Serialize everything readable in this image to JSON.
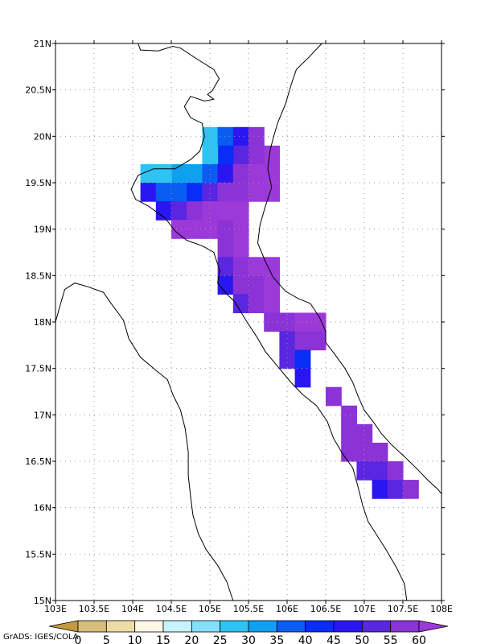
{
  "map": {
    "lon_range": [
      103,
      108
    ],
    "lat_range": [
      15,
      21
    ],
    "x_ticks": [
      {
        "value": 103,
        "label": "103E"
      },
      {
        "value": 103.5,
        "label": "103.5E"
      },
      {
        "value": 104,
        "label": "104E"
      },
      {
        "value": 104.5,
        "label": "104.5E"
      },
      {
        "value": 105,
        "label": "105E"
      },
      {
        "value": 105.5,
        "label": "105.5E"
      },
      {
        "value": 106,
        "label": "106E"
      },
      {
        "value": 106.5,
        "label": "106.5E"
      },
      {
        "value": 107,
        "label": "107E"
      },
      {
        "value": 107.5,
        "label": "107.5E"
      },
      {
        "value": 108,
        "label": "108E"
      }
    ],
    "y_ticks": [
      {
        "value": 15,
        "label": "15N"
      },
      {
        "value": 15.5,
        "label": "15.5N"
      },
      {
        "value": 16,
        "label": "16N"
      },
      {
        "value": 16.5,
        "label": "16.5N"
      },
      {
        "value": 17,
        "label": "17N"
      },
      {
        "value": 17.5,
        "label": "17.5N"
      },
      {
        "value": 18,
        "label": "18N"
      },
      {
        "value": 18.5,
        "label": "18.5N"
      },
      {
        "value": 19,
        "label": "19N"
      },
      {
        "value": 19.5,
        "label": "19.5N"
      },
      {
        "value": 20,
        "label": "20N"
      },
      {
        "value": 20.5,
        "label": "20.5N"
      },
      {
        "value": 21,
        "label": "21N"
      }
    ],
    "grid": true,
    "cells": [
      {
        "lon": 105.0,
        "lat": 20.0,
        "v": 27
      },
      {
        "lon": 105.2,
        "lat": 20.0,
        "v": 35
      },
      {
        "lon": 105.4,
        "lat": 20.0,
        "v": 48
      },
      {
        "lon": 105.6,
        "lat": 20.0,
        "v": 58
      },
      {
        "lon": 105.8,
        "lat": 19.8,
        "v": 60
      },
      {
        "lon": 105.6,
        "lat": 19.8,
        "v": 58
      },
      {
        "lon": 105.4,
        "lat": 19.8,
        "v": 50
      },
      {
        "lon": 105.2,
        "lat": 19.8,
        "v": 40
      },
      {
        "lon": 105.0,
        "lat": 19.8,
        "v": 28
      },
      {
        "lon": 104.8,
        "lat": 19.6,
        "v": 30
      },
      {
        "lon": 104.6,
        "lat": 19.6,
        "v": 30
      },
      {
        "lon": 104.4,
        "lat": 19.6,
        "v": 28
      },
      {
        "lon": 104.2,
        "lat": 19.6,
        "v": 25
      },
      {
        "lon": 105.0,
        "lat": 19.6,
        "v": 35
      },
      {
        "lon": 105.2,
        "lat": 19.6,
        "v": 45
      },
      {
        "lon": 105.4,
        "lat": 19.6,
        "v": 55
      },
      {
        "lon": 105.6,
        "lat": 19.6,
        "v": 60
      },
      {
        "lon": 105.8,
        "lat": 19.6,
        "v": 60
      },
      {
        "lon": 104.2,
        "lat": 19.4,
        "v": 45
      },
      {
        "lon": 104.4,
        "lat": 19.4,
        "v": 38
      },
      {
        "lon": 104.6,
        "lat": 19.4,
        "v": 35
      },
      {
        "lon": 104.8,
        "lat": 19.4,
        "v": 40
      },
      {
        "lon": 105.0,
        "lat": 19.4,
        "v": 50
      },
      {
        "lon": 105.2,
        "lat": 19.4,
        "v": 55
      },
      {
        "lon": 105.4,
        "lat": 19.4,
        "v": 58
      },
      {
        "lon": 105.6,
        "lat": 19.4,
        "v": 60
      },
      {
        "lon": 105.8,
        "lat": 19.4,
        "v": 60
      },
      {
        "lon": 104.4,
        "lat": 19.2,
        "v": 48
      },
      {
        "lon": 104.6,
        "lat": 19.2,
        "v": 52
      },
      {
        "lon": 104.8,
        "lat": 19.2,
        "v": 58
      },
      {
        "lon": 105.0,
        "lat": 19.2,
        "v": 60
      },
      {
        "lon": 105.2,
        "lat": 19.2,
        "v": 60
      },
      {
        "lon": 105.4,
        "lat": 19.2,
        "v": 60
      },
      {
        "lon": 104.6,
        "lat": 19.0,
        "v": 60
      },
      {
        "lon": 104.8,
        "lat": 19.0,
        "v": 60
      },
      {
        "lon": 105.0,
        "lat": 19.0,
        "v": 60
      },
      {
        "lon": 105.2,
        "lat": 19.0,
        "v": 58
      },
      {
        "lon": 105.4,
        "lat": 19.0,
        "v": 60
      },
      {
        "lon": 105.2,
        "lat": 18.8,
        "v": 55
      },
      {
        "lon": 105.4,
        "lat": 18.8,
        "v": 60
      },
      {
        "lon": 105.2,
        "lat": 18.6,
        "v": 50
      },
      {
        "lon": 105.4,
        "lat": 18.6,
        "v": 55
      },
      {
        "lon": 105.6,
        "lat": 18.6,
        "v": 60
      },
      {
        "lon": 105.8,
        "lat": 18.6,
        "v": 60
      },
      {
        "lon": 105.2,
        "lat": 18.4,
        "v": 48
      },
      {
        "lon": 105.4,
        "lat": 18.4,
        "v": 55
      },
      {
        "lon": 105.6,
        "lat": 18.4,
        "v": 58
      },
      {
        "lon": 105.8,
        "lat": 18.4,
        "v": 60
      },
      {
        "lon": 105.4,
        "lat": 18.2,
        "v": 50
      },
      {
        "lon": 105.6,
        "lat": 18.2,
        "v": 55
      },
      {
        "lon": 105.8,
        "lat": 18.2,
        "v": 60
      },
      {
        "lon": 105.8,
        "lat": 18.0,
        "v": 55
      },
      {
        "lon": 106.0,
        "lat": 18.0,
        "v": 58
      },
      {
        "lon": 106.2,
        "lat": 18.0,
        "v": 60
      },
      {
        "lon": 106.4,
        "lat": 18.0,
        "v": 60
      },
      {
        "lon": 106.0,
        "lat": 17.8,
        "v": 52
      },
      {
        "lon": 106.2,
        "lat": 17.8,
        "v": 55
      },
      {
        "lon": 106.4,
        "lat": 17.8,
        "v": 58
      },
      {
        "lon": 106.0,
        "lat": 17.6,
        "v": 50
      },
      {
        "lon": 106.2,
        "lat": 17.6,
        "v": 40
      },
      {
        "lon": 106.2,
        "lat": 17.4,
        "v": 48
      },
      {
        "lon": 106.6,
        "lat": 17.2,
        "v": 58
      },
      {
        "lon": 106.8,
        "lat": 17.0,
        "v": 58
      },
      {
        "lon": 106.8,
        "lat": 16.8,
        "v": 55
      },
      {
        "lon": 107.0,
        "lat": 16.8,
        "v": 58
      },
      {
        "lon": 106.8,
        "lat": 16.6,
        "v": 58
      },
      {
        "lon": 107.0,
        "lat": 16.6,
        "v": 55
      },
      {
        "lon": 107.2,
        "lat": 16.6,
        "v": 58
      },
      {
        "lon": 107.0,
        "lat": 16.4,
        "v": 50
      },
      {
        "lon": 107.2,
        "lat": 16.4,
        "v": 52
      },
      {
        "lon": 107.4,
        "lat": 16.4,
        "v": 58
      },
      {
        "lon": 107.2,
        "lat": 16.2,
        "v": 45
      },
      {
        "lon": 107.4,
        "lat": 16.2,
        "v": 50
      },
      {
        "lon": 107.6,
        "lat": 16.2,
        "v": 58
      }
    ],
    "coastline_lonlat": [
      [
        104.07,
        21.0
      ],
      [
        104.1,
        20.93
      ],
      [
        104.33,
        20.92
      ],
      [
        104.52,
        20.97
      ],
      [
        104.62,
        20.95
      ],
      [
        104.82,
        20.84
      ],
      [
        105.05,
        20.72
      ],
      [
        105.12,
        20.62
      ],
      [
        105.03,
        20.49
      ],
      [
        104.97,
        20.45
      ],
      [
        105.05,
        20.4
      ],
      [
        104.93,
        20.38
      ],
      [
        104.75,
        20.43
      ],
      [
        104.67,
        20.32
      ],
      [
        104.75,
        20.2
      ],
      [
        104.9,
        20.14
      ],
      [
        104.93,
        20.0
      ],
      [
        104.87,
        19.84
      ],
      [
        104.75,
        19.75
      ],
      [
        104.55,
        19.65
      ],
      [
        104.27,
        19.65
      ],
      [
        104.07,
        19.58
      ],
      [
        103.98,
        19.43
      ],
      [
        104.04,
        19.32
      ],
      [
        104.2,
        19.25
      ],
      [
        104.42,
        19.12
      ],
      [
        104.55,
        18.98
      ],
      [
        104.7,
        18.88
      ],
      [
        104.9,
        18.82
      ],
      [
        105.05,
        18.75
      ],
      [
        105.13,
        18.55
      ],
      [
        105.1,
        18.42
      ],
      [
        105.22,
        18.3
      ],
      [
        105.32,
        18.22
      ],
      [
        105.48,
        18.0
      ],
      [
        105.6,
        17.85
      ],
      [
        105.72,
        17.68
      ],
      [
        105.88,
        17.52
      ],
      [
        106.05,
        17.35
      ],
      [
        106.2,
        17.22
      ],
      [
        106.38,
        17.1
      ],
      [
        106.52,
        16.93
      ],
      [
        106.6,
        16.75
      ],
      [
        106.72,
        16.58
      ],
      [
        106.85,
        16.43
      ],
      [
        106.92,
        16.22
      ],
      [
        106.98,
        16.02
      ],
      [
        107.05,
        15.85
      ],
      [
        107.15,
        15.72
      ],
      [
        107.28,
        15.55
      ],
      [
        107.42,
        15.35
      ],
      [
        107.52,
        15.18
      ],
      [
        107.55,
        15.0
      ]
    ],
    "coast_lonlat": [
      [
        106.45,
        21.0
      ],
      [
        106.28,
        20.85
      ],
      [
        106.12,
        20.72
      ],
      [
        106.05,
        20.55
      ],
      [
        105.98,
        20.35
      ],
      [
        105.88,
        20.15
      ],
      [
        105.82,
        19.98
      ],
      [
        105.78,
        19.85
      ],
      [
        105.75,
        19.65
      ],
      [
        105.8,
        19.45
      ],
      [
        105.72,
        19.25
      ],
      [
        105.65,
        19.05
      ],
      [
        105.62,
        18.85
      ],
      [
        105.72,
        18.65
      ],
      [
        105.82,
        18.48
      ],
      [
        105.98,
        18.33
      ],
      [
        106.15,
        18.25
      ],
      [
        106.3,
        18.2
      ],
      [
        106.42,
        18.05
      ],
      [
        106.5,
        17.9
      ],
      [
        106.5,
        17.78
      ],
      [
        106.62,
        17.65
      ],
      [
        106.75,
        17.5
      ],
      [
        106.85,
        17.35
      ],
      [
        106.92,
        17.2
      ],
      [
        107.0,
        17.05
      ],
      [
        107.12,
        16.92
      ],
      [
        107.22,
        16.8
      ],
      [
        107.35,
        16.68
      ],
      [
        107.52,
        16.55
      ],
      [
        107.68,
        16.42
      ],
      [
        107.82,
        16.3
      ],
      [
        107.95,
        16.2
      ],
      [
        108.0,
        16.15
      ]
    ],
    "border2_lonlat": [
      [
        103.0,
        18.0
      ],
      [
        103.05,
        18.15
      ],
      [
        103.12,
        18.35
      ],
      [
        103.25,
        18.42
      ],
      [
        103.42,
        18.38
      ],
      [
        103.62,
        18.32
      ],
      [
        103.72,
        18.2
      ],
      [
        103.88,
        18.02
      ],
      [
        103.95,
        17.82
      ],
      [
        104.1,
        17.62
      ],
      [
        104.3,
        17.48
      ],
      [
        104.45,
        17.38
      ],
      [
        104.52,
        17.22
      ],
      [
        104.62,
        17.05
      ],
      [
        104.68,
        16.85
      ],
      [
        104.72,
        16.6
      ],
      [
        104.72,
        16.35
      ],
      [
        104.75,
        16.12
      ],
      [
        104.78,
        15.92
      ],
      [
        104.85,
        15.72
      ],
      [
        104.95,
        15.55
      ],
      [
        105.1,
        15.38
      ],
      [
        105.22,
        15.2
      ],
      [
        105.3,
        15.0
      ]
    ]
  },
  "colorbar": {
    "levels": [
      "0",
      "5",
      "10",
      "15",
      "20",
      "25",
      "30",
      "35",
      "40",
      "45",
      "50",
      "55",
      "60"
    ],
    "colors": [
      "#c39a3f",
      "#d7bc7a",
      "#eedca6",
      "#fff7e6",
      "#c5f3ff",
      "#85e1fb",
      "#2ec3f3",
      "#0fa0ef",
      "#0b5cf2",
      "#0a2cf7",
      "#2a16f2",
      "#5a26e0",
      "#8b33d6",
      "#9c39d9"
    ]
  },
  "credit": "GrADS: IGES/COLA"
}
